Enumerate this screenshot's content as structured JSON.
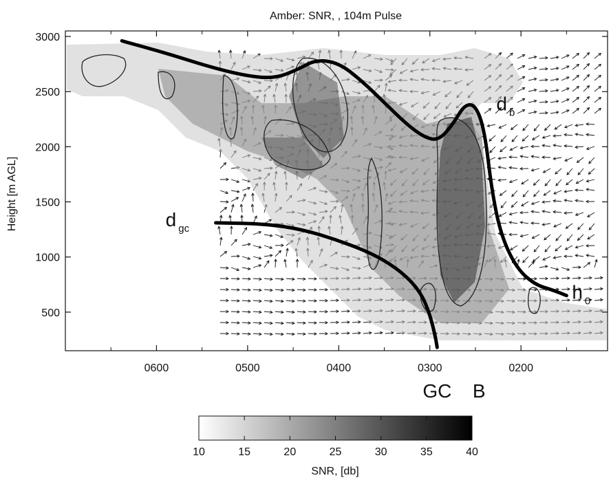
{
  "chart_data": {
    "type": "heatmap",
    "title": "Amber: SNR, , 104m Pulse",
    "ylabel": "Height [m AGL]",
    "xlabel": "",
    "x_reversed": true,
    "xlim": [
      700,
      105
    ],
    "ylim": [
      150,
      3050
    ],
    "x_ticks": [
      {
        "value": 600,
        "label": "0600"
      },
      {
        "value": 500,
        "label": "0500"
      },
      {
        "value": 400,
        "label": "0400"
      },
      {
        "value": 300,
        "label": "0300"
      },
      {
        "value": 200,
        "label": "0200"
      }
    ],
    "y_ticks": [
      500,
      1000,
      1500,
      2000,
      2500,
      3000
    ],
    "colorbar": {
      "label": "SNR, [db]",
      "min": 10,
      "max": 40,
      "ticks": [
        10,
        15,
        20,
        25,
        30,
        35,
        40
      ],
      "color_low": "#ffffff",
      "color_high": "#000000"
    },
    "boundary_lines": [
      {
        "label": "d",
        "subscript": "b",
        "points": [
          [
            638,
            2960
          ],
          [
            590,
            2850
          ],
          [
            540,
            2720
          ],
          [
            500,
            2640
          ],
          [
            470,
            2620
          ],
          [
            445,
            2700
          ],
          [
            425,
            2790
          ],
          [
            400,
            2760
          ],
          [
            375,
            2600
          ],
          [
            350,
            2400
          ],
          [
            325,
            2200
          ],
          [
            305,
            2080
          ],
          [
            290,
            2060
          ],
          [
            275,
            2200
          ],
          [
            262,
            2380
          ],
          [
            250,
            2380
          ],
          [
            240,
            2150
          ],
          [
            232,
            1600
          ],
          [
            222,
            1200
          ],
          [
            205,
            900
          ],
          [
            185,
            750
          ],
          [
            165,
            700
          ],
          [
            150,
            650
          ]
        ]
      },
      {
        "label": "d",
        "subscript": "gc",
        "points": [
          [
            535,
            1310
          ],
          [
            480,
            1300
          ],
          [
            440,
            1250
          ],
          [
            400,
            1150
          ],
          [
            360,
            1020
          ],
          [
            330,
            860
          ],
          [
            310,
            680
          ],
          [
            300,
            480
          ],
          [
            294,
            280
          ],
          [
            292,
            180
          ]
        ]
      }
    ],
    "labels": [
      {
        "text": "h",
        "subscript": "0",
        "x": 144,
        "y": 620
      },
      {
        "text": "GC",
        "x": 292,
        "y": 75
      },
      {
        "text": "B",
        "x": 246,
        "y": 75
      }
    ]
  }
}
